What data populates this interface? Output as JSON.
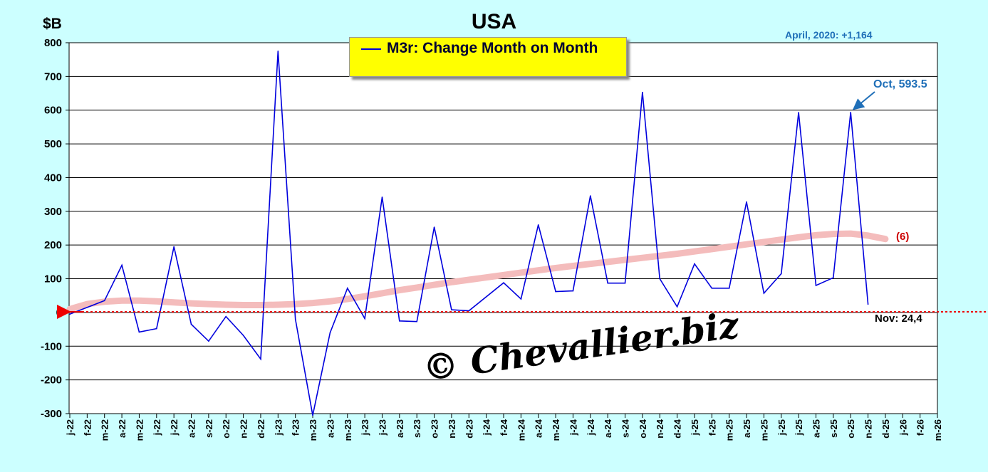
{
  "chart_data": {
    "type": "line",
    "title": "USA",
    "ylabel": "$B",
    "ylim": [
      -300,
      800
    ],
    "yticks": [
      800,
      700,
      600,
      500,
      400,
      300,
      200,
      100,
      0,
      -100,
      -200,
      -300
    ],
    "grid": true,
    "legend_placement": "top-center",
    "x_ticks": [
      "j-22",
      "f-22",
      "m-22",
      "a-22",
      "m-22",
      "j-22",
      "j-22",
      "a-22",
      "s-22",
      "o-22",
      "n-22",
      "d-22",
      "j-23",
      "f-23",
      "m-23",
      "a-23",
      "m-23",
      "j-23",
      "j-23",
      "a-23",
      "s-23",
      "o-23",
      "n-23",
      "d-23",
      "j-24",
      "f-24",
      "m-24",
      "a-24",
      "m-24",
      "j-24",
      "j-24",
      "a-24",
      "s-24",
      "o-24",
      "n-24",
      "d-24",
      "j-25",
      "f-25",
      "m-25",
      "a-25",
      "m-25",
      "j-25",
      "j-25",
      "a-25",
      "s-25",
      "o-25",
      "n-25",
      "d-25",
      "j-26",
      "f-26",
      "m-26"
    ],
    "series": [
      {
        "name": "M3r: Change Month on Month",
        "color": "#0000dd",
        "values": [
          -5,
          15,
          35,
          140,
          -58,
          -48,
          195,
          -35,
          -85,
          -12,
          -68,
          -138,
          775,
          -20,
          -305,
          -60,
          72,
          -18,
          342,
          -25,
          -27,
          253,
          8,
          5,
          null,
          88,
          40,
          260,
          62,
          64,
          346,
          87,
          87,
          653,
          100,
          17,
          144,
          72,
          72,
          328,
          57,
          115,
          593,
          80,
          103,
          593.5,
          24.4
        ]
      },
      {
        "name": "(6)",
        "color": "#f4bcbc",
        "values": [
          10,
          25,
          32,
          35,
          35,
          33,
          30,
          27,
          25,
          23,
          22,
          22,
          23,
          25,
          28,
          33,
          40,
          48,
          57,
          66,
          74,
          82,
          90,
          97,
          104,
          111,
          118,
          125,
          132,
          138,
          144,
          150,
          156,
          162,
          168,
          174,
          181,
          188,
          195,
          202,
          209,
          216,
          223,
          229,
          233,
          234,
          228,
          218
        ]
      }
    ],
    "annotations": {
      "top_note": "April, 2020: +1,164",
      "oct_label": "Oct, 593.5",
      "nov_label": "Nov: 24,4",
      "trend_label": "(6)"
    },
    "watermark": "© Chevallier.biz"
  }
}
